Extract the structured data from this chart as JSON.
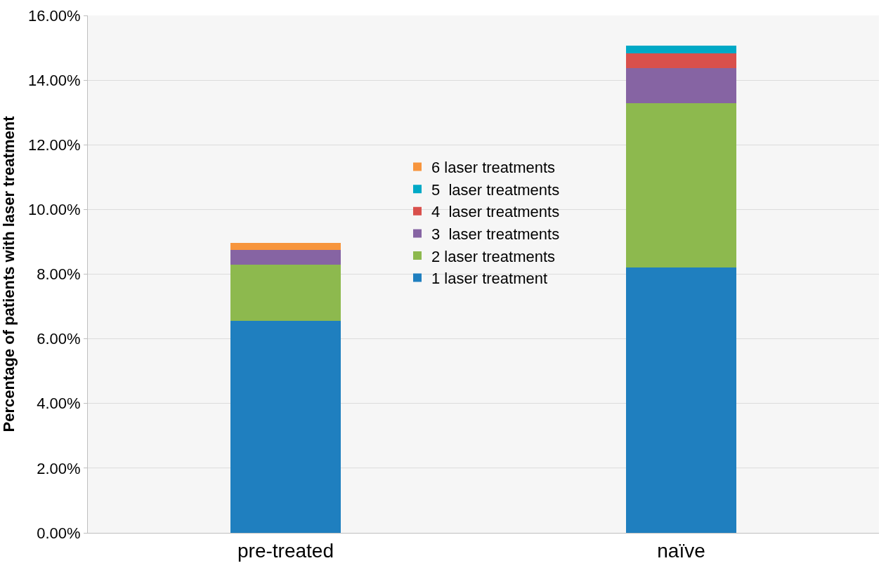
{
  "chart_data": {
    "type": "bar",
    "stacked": true,
    "ylabel": "Percentage of patients with laser treatment",
    "categories": [
      "pre-treated",
      "naïve"
    ],
    "series": [
      {
        "name": "1 laser treatment",
        "color": "#1f7fbf",
        "values": [
          6.55,
          8.2
        ]
      },
      {
        "name": "2 laser treatments",
        "color": "#8db94e",
        "values": [
          1.75,
          5.09
        ]
      },
      {
        "name": "3  laser treatments",
        "color": "#8664a3",
        "values": [
          0.45,
          1.09
        ]
      },
      {
        "name": "4  laser treatments",
        "color": "#d9504c",
        "values": [
          0,
          0.45
        ]
      },
      {
        "name": "5  laser treatments",
        "color": "#00a9c6",
        "values": [
          0,
          0.24
        ]
      },
      {
        "name": "6 laser treatments",
        "color": "#f7953d",
        "values": [
          0.22,
          0
        ]
      }
    ],
    "ylim": [
      0,
      16
    ],
    "yticks": [
      {
        "value": 0,
        "label": "0.00%"
      },
      {
        "value": 2,
        "label": "2.00%"
      },
      {
        "value": 4,
        "label": "4.00%"
      },
      {
        "value": 6,
        "label": "6.00%"
      },
      {
        "value": 8,
        "label": "8.00%"
      },
      {
        "value": 10,
        "label": "10.00%"
      },
      {
        "value": 12,
        "label": "12.00%"
      },
      {
        "value": 14,
        "label": "14.00%"
      },
      {
        "value": 16,
        "label": "16.00%"
      }
    ],
    "grid": "y",
    "legend": "center"
  }
}
